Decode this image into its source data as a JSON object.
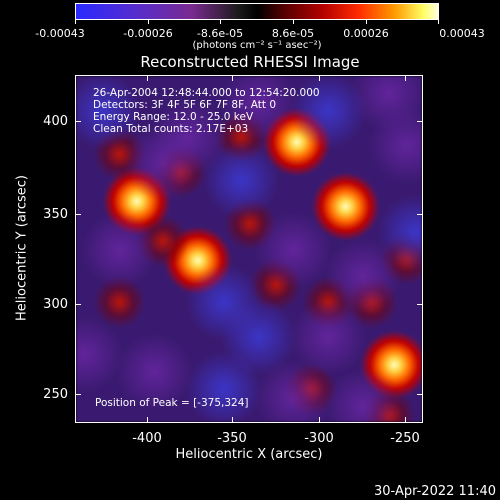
{
  "colorbar": {
    "tick_labels": [
      "-0.00043",
      "-0.00026",
      "-8.6e-05",
      "8.6e-05",
      "0.00026",
      "0.00043"
    ],
    "units": "(photons cm⁻² s⁻¹ asec⁻²)"
  },
  "title": "Reconstructed RHESSI Image",
  "info": {
    "line1": "26-Apr-2004 12:48:44.000 to 12:54:20.000",
    "line2": "Detectors: 3F 4F 5F 6F 7F 8F, Att 0",
    "line3": "Energy Range: 12.0 - 25.0 keV",
    "line4": "Clean     Total counts: 2.17E+03"
  },
  "peak": "Position of Peak = [-375,324]",
  "axes": {
    "xlabel": "Heliocentric X (arcsec)",
    "ylabel": "Heliocentric Y (arcsec)",
    "xticks": [
      "-400",
      "-350",
      "-300",
      "-250"
    ],
    "yticks": [
      "400",
      "350",
      "300",
      "250"
    ]
  },
  "footer_date": "30-Apr-2022 11:40",
  "chart_data": {
    "type": "heatmap",
    "title": "Reconstructed RHESSI Image",
    "xlabel": "Heliocentric X (arcsec)",
    "ylabel": "Heliocentric Y (arcsec)",
    "xlim": [
      -445,
      -245
    ],
    "ylim": [
      230,
      430
    ],
    "colorbar_range": [
      -0.00043,
      0.00043
    ],
    "bright_sources": [
      {
        "x": -375,
        "y": 324
      },
      {
        "x": -410,
        "y": 358
      },
      {
        "x": -318,
        "y": 392
      },
      {
        "x": -262,
        "y": 264
      },
      {
        "x": -290,
        "y": 355
      }
    ]
  }
}
